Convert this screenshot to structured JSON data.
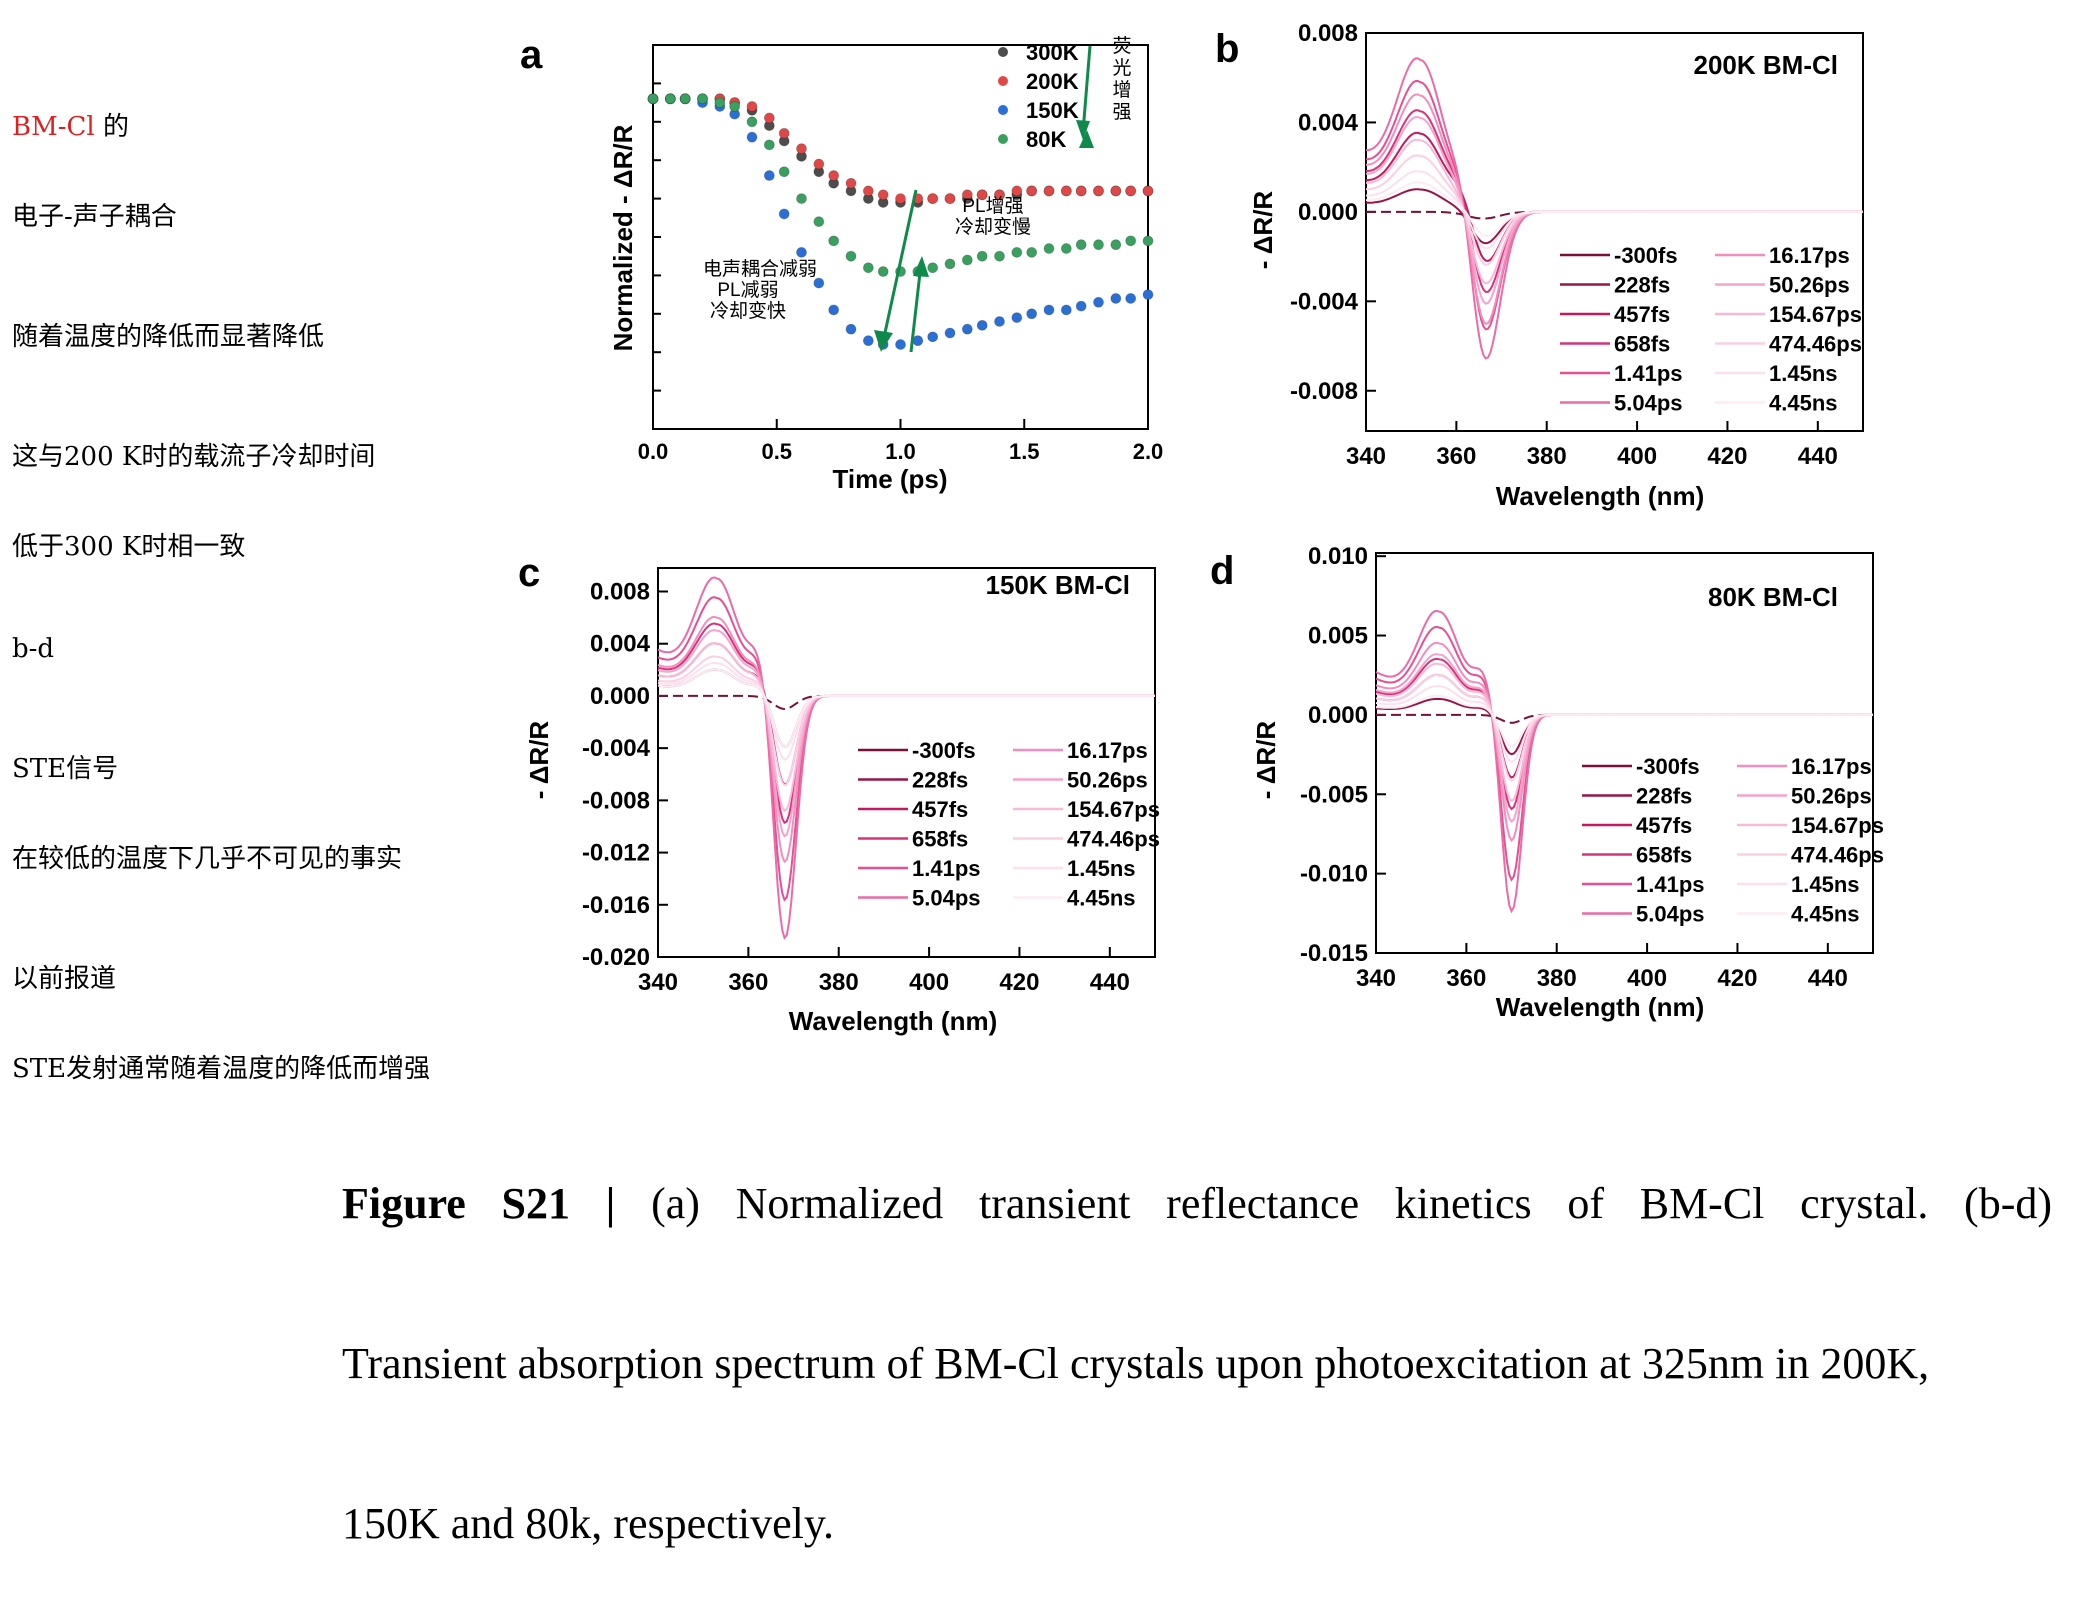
{
  "notes": {
    "block1": {
      "title_red": "BM-Cl",
      "title_rest": " 的",
      "lines": [
        "电子-声子耦合",
        "随着温度的降低而显著降低",
        "",
        "这与200 K时的载流子冷却时间",
        "低于300 K时相一致"
      ]
    },
    "block2": {
      "lines": [
        "b-d",
        "",
        "STE信号",
        "在较低的温度下几乎不可见的事实",
        "",
        "以前报道",
        "STE发射通常随着温度的降低而增强"
      ]
    }
  },
  "colors": {
    "series_300K": "#4d4d4d",
    "series_200K": "#e04848",
    "series_150K": "#2a6fd6",
    "series_80K": "#3aa060",
    "annotation_arrow": "#0f8a4a",
    "trace_colors": [
      "#7a0f3a",
      "#9a1546",
      "#c21a5c",
      "#d6337a",
      "#e64f91",
      "#ec6aa6",
      "#f28dbd",
      "#f5a3cb",
      "#f8b9d8",
      "#fbcfe4",
      "#fde0ee",
      "#fdecf4"
    ]
  },
  "panel_a": {
    "letter": "a",
    "xlabel": "Time (ps)",
    "ylabel": "Normalized - ΔR/R",
    "xticks": [
      "0.0",
      "0.5",
      "1.0",
      "1.5",
      "2.0"
    ],
    "legend": [
      "300K",
      "200K",
      "150K",
      "80K"
    ],
    "vertical_annotation": [
      "荧",
      "光",
      "增",
      "强"
    ],
    "annotation_left": [
      "电声耦合减弱",
      "PL减弱",
      "冷却变快"
    ],
    "annotation_right": [
      "PL增强",
      "冷却变慢"
    ]
  },
  "panel_b": {
    "letter": "b",
    "title": "200K BM-Cl",
    "xlabel": "Wavelength (nm)",
    "ylabel": "- ΔR/R",
    "yticks": [
      "0.008",
      "0.004",
      "0.000",
      "-0.004",
      "-0.008"
    ],
    "xticks": [
      "340",
      "360",
      "380",
      "400",
      "420",
      "440"
    ]
  },
  "panel_c": {
    "letter": "c",
    "title": "150K BM-Cl",
    "xlabel": "Wavelength (nm)",
    "ylabel": "- ΔR/R",
    "yticks": [
      "0.008",
      "0.004",
      "0.000",
      "-0.004",
      "-0.008",
      "-0.012",
      "-0.016",
      "-0.020"
    ],
    "xticks": [
      "340",
      "360",
      "380",
      "400",
      "420",
      "440"
    ]
  },
  "panel_d": {
    "letter": "d",
    "title": "80K BM-Cl",
    "xlabel": "Wavelength (nm)",
    "ylabel": "- ΔR/R",
    "yticks": [
      "0.010",
      "0.005",
      "0.000",
      "-0.005",
      "-0.010",
      "-0.015"
    ],
    "xticks": [
      "340",
      "360",
      "380",
      "400",
      "420",
      "440"
    ]
  },
  "delays": [
    "-300fs",
    "228fs",
    "457fs",
    "658fs",
    "1.41ps",
    "5.04ps",
    "16.17ps",
    "50.26ps",
    "154.67ps",
    "474.46ps",
    "1.45ns",
    "4.45ns"
  ],
  "caption": {
    "bold": "Figure S21 |",
    "line1_rest": " (a) Normalized transient reflectance kinetics of BM-Cl crystal. (b-d)",
    "line2": "Transient absorption spectrum of BM-Cl crystals upon photoexcitation at 325nm in 200K,",
    "line3": "150K and 80k, respectively."
  },
  "chart_data": [
    {
      "type": "scatter",
      "panel": "a",
      "xlabel": "Time (ps)",
      "ylabel": "Normalized - ΔR/R",
      "xlim": [
        0,
        2.0
      ],
      "ylim": [
        0,
        1
      ],
      "x": [
        0.0,
        0.07,
        0.13,
        0.2,
        0.27,
        0.33,
        0.4,
        0.47,
        0.53,
        0.6,
        0.67,
        0.73,
        0.8,
        0.87,
        0.93,
        1.0,
        1.07,
        1.13,
        1.2,
        1.27,
        1.33,
        1.4,
        1.47,
        1.53,
        1.6,
        1.67,
        1.73,
        1.8,
        1.87,
        1.93,
        2.0
      ],
      "series": [
        {
          "name": "300K",
          "values": [
            0.86,
            0.86,
            0.86,
            0.86,
            0.86,
            0.85,
            0.83,
            0.79,
            0.75,
            0.71,
            0.67,
            0.64,
            0.62,
            0.6,
            0.59,
            0.59,
            0.59,
            0.6,
            0.6,
            0.6,
            0.61,
            0.61,
            0.61,
            0.62,
            0.62,
            0.62,
            0.62,
            0.62,
            0.62,
            0.62,
            0.62
          ]
        },
        {
          "name": "200K",
          "values": [
            0.86,
            0.86,
            0.86,
            0.86,
            0.86,
            0.85,
            0.84,
            0.81,
            0.77,
            0.73,
            0.69,
            0.66,
            0.64,
            0.62,
            0.61,
            0.6,
            0.6,
            0.6,
            0.6,
            0.61,
            0.61,
            0.61,
            0.62,
            0.62,
            0.62,
            0.62,
            0.62,
            0.62,
            0.62,
            0.62,
            0.62
          ]
        },
        {
          "name": "150K",
          "values": [
            0.86,
            0.86,
            0.86,
            0.85,
            0.84,
            0.82,
            0.76,
            0.66,
            0.56,
            0.46,
            0.38,
            0.31,
            0.26,
            0.23,
            0.22,
            0.22,
            0.23,
            0.24,
            0.25,
            0.26,
            0.27,
            0.28,
            0.29,
            0.3,
            0.31,
            0.31,
            0.32,
            0.33,
            0.34,
            0.34,
            0.35
          ]
        },
        {
          "name": "80K",
          "values": [
            0.86,
            0.86,
            0.86,
            0.86,
            0.85,
            0.84,
            0.8,
            0.74,
            0.67,
            0.6,
            0.54,
            0.49,
            0.45,
            0.42,
            0.41,
            0.41,
            0.41,
            0.42,
            0.43,
            0.44,
            0.45,
            0.45,
            0.46,
            0.46,
            0.47,
            0.47,
            0.48,
            0.48,
            0.48,
            0.49,
            0.49
          ]
        }
      ]
    },
    {
      "type": "line",
      "panel": "b",
      "title": "200K BM-Cl",
      "xlabel": "Wavelength (nm)",
      "ylabel": "- ΔR/R",
      "xlim": [
        340,
        450
      ],
      "ylim": [
        -0.0098,
        0.008
      ],
      "peak": {
        "wavelength": 352,
        "width": 5
      },
      "dip": {
        "wavelength": 366,
        "width": 3.5
      },
      "series": [
        {
          "name": "-300fs",
          "pos": 0.0,
          "neg": -0.0003
        },
        {
          "name": "228fs",
          "pos": 0.001,
          "neg": -0.0015
        },
        {
          "name": "457fs",
          "pos": 0.0035,
          "neg": -0.0025
        },
        {
          "name": "658fs",
          "pos": 0.0045,
          "neg": -0.004
        },
        {
          "name": "1.41ps",
          "pos": 0.0058,
          "neg": -0.0058
        },
        {
          "name": "5.04ps",
          "pos": 0.0068,
          "neg": -0.0072
        },
        {
          "name": "16.17ps",
          "pos": 0.0052,
          "neg": -0.0055
        },
        {
          "name": "50.26ps",
          "pos": 0.0042,
          "neg": -0.0045
        },
        {
          "name": "154.67ps",
          "pos": 0.0032,
          "neg": -0.0035
        },
        {
          "name": "474.46ps",
          "pos": 0.0025,
          "neg": -0.0026
        },
        {
          "name": "1.45ns",
          "pos": 0.0018,
          "neg": -0.0018
        },
        {
          "name": "4.45ns",
          "pos": 0.0013,
          "neg": -0.0012
        }
      ]
    },
    {
      "type": "line",
      "panel": "c",
      "title": "150K BM-Cl",
      "xlabel": "Wavelength (nm)",
      "ylabel": "- ΔR/R",
      "xlim": [
        340,
        450
      ],
      "ylim": [
        -0.02,
        0.0098
      ],
      "peak": {
        "wavelength": 353,
        "width": 4.5
      },
      "dip": {
        "wavelength": 368,
        "width": 2.5
      },
      "series": [
        {
          "name": "-300fs",
          "pos": 0.0,
          "neg": -0.001
        },
        {
          "name": "228fs",
          "pos": 0.002,
          "neg": -0.004
        },
        {
          "name": "457fs",
          "pos": 0.004,
          "neg": -0.007
        },
        {
          "name": "658fs",
          "pos": 0.0055,
          "neg": -0.01
        },
        {
          "name": "1.41ps",
          "pos": 0.0075,
          "neg": -0.016
        },
        {
          "name": "5.04ps",
          "pos": 0.009,
          "neg": -0.019
        },
        {
          "name": "16.17ps",
          "pos": 0.006,
          "neg": -0.013
        },
        {
          "name": "50.26ps",
          "pos": 0.005,
          "neg": -0.011
        },
        {
          "name": "154.67ps",
          "pos": 0.004,
          "neg": -0.009
        },
        {
          "name": "474.46ps",
          "pos": 0.003,
          "neg": -0.007
        },
        {
          "name": "1.45ns",
          "pos": 0.0025,
          "neg": -0.005
        },
        {
          "name": "4.45ns",
          "pos": 0.002,
          "neg": -0.004
        }
      ]
    },
    {
      "type": "line",
      "panel": "d",
      "title": "80K BM-Cl",
      "xlabel": "Wavelength (nm)",
      "ylabel": "- ΔR/R",
      "xlim": [
        340,
        450
      ],
      "ylim": [
        -0.015,
        0.0102
      ],
      "peak": {
        "wavelength": 354,
        "width": 4.5
      },
      "dip": {
        "wavelength": 370,
        "width": 2.3
      },
      "series": [
        {
          "name": "-300fs",
          "pos": 0.0,
          "neg": -0.0005
        },
        {
          "name": "228fs",
          "pos": 0.001,
          "neg": -0.0025
        },
        {
          "name": "457fs",
          "pos": 0.0025,
          "neg": -0.004
        },
        {
          "name": "658fs",
          "pos": 0.0035,
          "neg": -0.006
        },
        {
          "name": "1.41ps",
          "pos": 0.0055,
          "neg": -0.0105
        },
        {
          "name": "5.04ps",
          "pos": 0.0065,
          "neg": -0.0125
        },
        {
          "name": "16.17ps",
          "pos": 0.0045,
          "neg": -0.008
        },
        {
          "name": "50.26ps",
          "pos": 0.0038,
          "neg": -0.0068
        },
        {
          "name": "154.67ps",
          "pos": 0.0032,
          "neg": -0.0055
        },
        {
          "name": "474.46ps",
          "pos": 0.0025,
          "neg": -0.0042
        },
        {
          "name": "1.45ns",
          "pos": 0.0018,
          "neg": -0.003
        },
        {
          "name": "4.45ns",
          "pos": 0.0012,
          "neg": -0.002
        }
      ]
    }
  ]
}
